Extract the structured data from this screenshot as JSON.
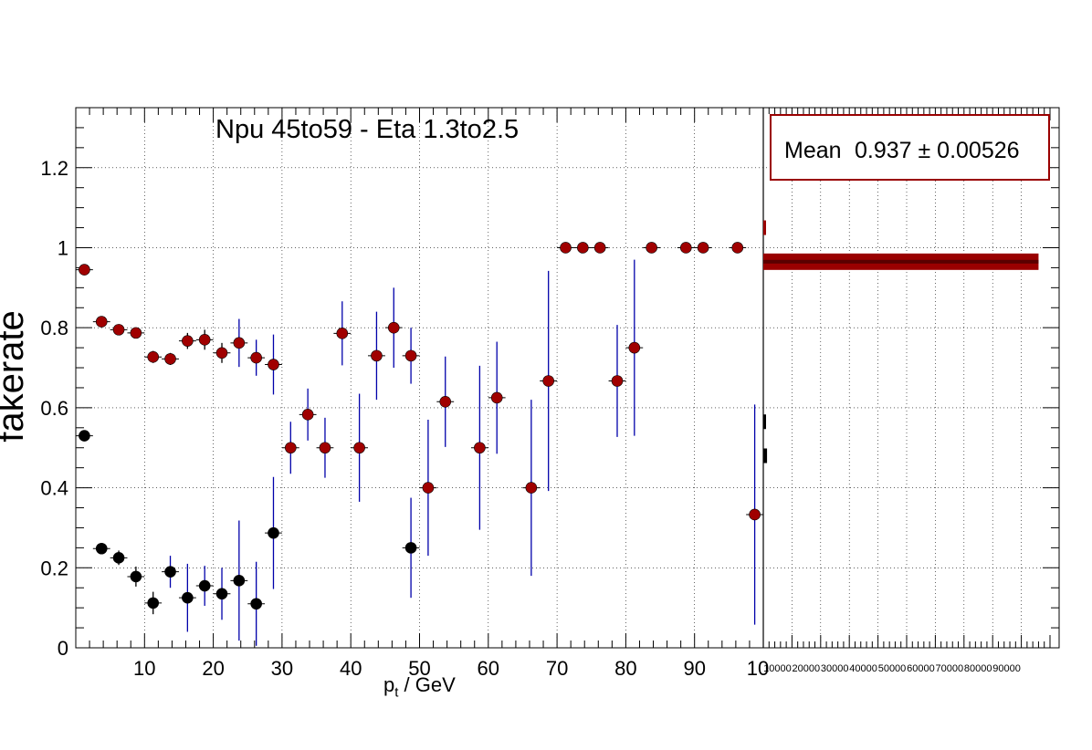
{
  "title": "Npu 45to59 - Eta 1.3to2.5",
  "stats": {
    "label": "Mean",
    "value": "0.937 ± 0.00526"
  },
  "chart_data": {
    "type": "scatter",
    "title": "Npu 45to59 - Eta 1.3to2.5",
    "xlabel_main": "p",
    "xlabel_sub": "t",
    "xlabel_rest": " / GeV",
    "ylabel": "fakerate",
    "xlim": [
      0,
      100
    ],
    "ylim": [
      0,
      1.35
    ],
    "x_tick_labels": [
      "10",
      "20",
      "30",
      "40",
      "50",
      "60",
      "70",
      "80",
      "90",
      "10"
    ],
    "y_tick_labels": [
      "0",
      "0.2",
      "0.4",
      "0.6",
      "0.8",
      "1",
      "1.2"
    ],
    "side_axis_labels": [
      "10000",
      "20000",
      "30000",
      "40000",
      "50000",
      "60000",
      "70000",
      "80000",
      "90000"
    ],
    "grid": true,
    "colors": {
      "red_marker": "#a00000",
      "black_marker": "#000000",
      "error_bar": "#0000aa",
      "side_hist": "#9a0000"
    },
    "series": [
      {
        "color": "#a00000",
        "x": [
          1.25,
          3.75,
          6.25,
          8.75,
          11.25,
          13.75,
          16.25,
          18.75,
          21.25,
          23.75,
          26.25,
          28.75,
          31.25,
          33.75,
          36.25,
          38.75,
          41.25,
          43.75,
          46.25,
          48.75,
          51.25,
          53.75,
          58.75,
          61.25,
          66.25,
          68.75,
          71.25,
          73.75,
          76.25,
          78.75,
          81.25,
          83.75,
          88.75,
          91.25,
          96.25,
          98.75
        ],
        "y": [
          0.945,
          0.815,
          0.795,
          0.787,
          0.727,
          0.722,
          0.767,
          0.77,
          0.737,
          0.762,
          0.725,
          0.708,
          0.5,
          0.583,
          0.5,
          0.786,
          0.5,
          0.73,
          0.8,
          0.73,
          0.4,
          0.615,
          0.5,
          0.625,
          0.4,
          0.667,
          1.0,
          1.0,
          1.0,
          0.667,
          0.75,
          1.0,
          1.0,
          1.0,
          1.0,
          0.333
        ],
        "yerr": [
          0.005,
          0.008,
          0.01,
          0.012,
          0.015,
          0.015,
          0.02,
          0.025,
          0.025,
          0.06,
          0.045,
          0.075,
          0.065,
          0.065,
          0.075,
          0.08,
          0.135,
          0.11,
          0.1,
          0.07,
          0.17,
          0.113,
          0.205,
          0.14,
          0.22,
          0.275,
          0,
          0,
          0,
          0.14,
          0.22,
          0,
          0,
          0,
          0,
          0.275
        ]
      },
      {
        "color": "#000000",
        "x": [
          1.25,
          3.75,
          6.25,
          8.75,
          11.25,
          13.75,
          16.25,
          18.75,
          21.25,
          23.75,
          26.25,
          28.75,
          48.75
        ],
        "y": [
          0.53,
          0.248,
          0.225,
          0.178,
          0.112,
          0.19,
          0.125,
          0.155,
          0.135,
          0.168,
          0.11,
          0.287,
          0.25
        ],
        "yerr": [
          0.008,
          0.012,
          0.018,
          0.025,
          0.028,
          0.04,
          0.085,
          0.05,
          0.065,
          0.15,
          0.105,
          0.14,
          0.125
        ]
      }
    ],
    "side_histogram": [
      {
        "y": 0.965,
        "count": 96000,
        "color": "#9a0000"
      },
      {
        "y": 0.48,
        "count": 1300,
        "color": "#000000"
      },
      {
        "y": 0.565,
        "count": 900,
        "color": "#000000"
      },
      {
        "y": 1.05,
        "count": 400,
        "color": "#9a0000"
      }
    ],
    "side_xlim": [
      0,
      100000
    ]
  }
}
